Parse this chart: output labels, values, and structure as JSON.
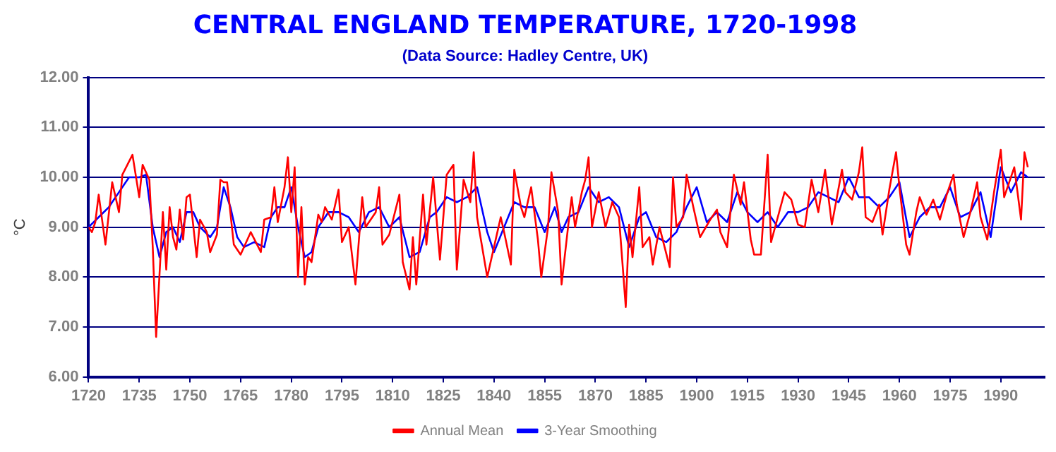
{
  "chart_data": {
    "type": "line",
    "title": "CENTRAL ENGLAND TEMPERATURE, 1720-1998",
    "subtitle": "(Data Source: Hadley Centre, UK)",
    "ylabel": "°C",
    "xlim": [
      1720,
      2003
    ],
    "xticks": [
      1720,
      1735,
      1750,
      1765,
      1780,
      1795,
      1810,
      1825,
      1840,
      1855,
      1870,
      1885,
      1900,
      1915,
      1930,
      1945,
      1960,
      1975,
      1990
    ],
    "ylim": [
      6,
      12
    ],
    "yticks": [
      {
        "value": 6,
        "label": "6.00"
      },
      {
        "value": 7,
        "label": "7.00"
      },
      {
        "value": 8,
        "label": "8.00"
      },
      {
        "value": 9,
        "label": "9.00"
      },
      {
        "value": 10,
        "label": "10.00"
      },
      {
        "value": 11,
        "label": "11.00"
      },
      {
        "value": 12,
        "label": "12.00"
      }
    ],
    "grid": "y",
    "legend": "bottom",
    "marker": "none",
    "line_style": "solid",
    "series": [
      {
        "name": "Annual Mean",
        "color": "#ff0000",
        "x": [
          1720,
          1721,
          1722,
          1723,
          1725,
          1727,
          1729,
          1730,
          1733,
          1735,
          1736,
          1738,
          1739,
          1740,
          1742,
          1743,
          1744,
          1745,
          1746,
          1747,
          1748,
          1749,
          1750,
          1752,
          1753,
          1755,
          1756,
          1758,
          1759,
          1760,
          1761,
          1763,
          1765,
          1768,
          1771,
          1772,
          1774,
          1775,
          1776,
          1778,
          1779,
          1780,
          1781,
          1782,
          1783,
          1784,
          1785,
          1786,
          1788,
          1789,
          1790,
          1792,
          1794,
          1795,
          1797,
          1799,
          1801,
          1802,
          1805,
          1806,
          1807,
          1809,
          1812,
          1813,
          1815,
          1816,
          1817,
          1819,
          1820,
          1822,
          1824,
          1826,
          1828,
          1829,
          1831,
          1833,
          1834,
          1835,
          1837,
          1838,
          1840,
          1842,
          1843,
          1845,
          1846,
          1848,
          1849,
          1851,
          1853,
          1854,
          1856,
          1857,
          1859,
          1860,
          1862,
          1863,
          1864,
          1866,
          1867,
          1868,
          1869,
          1871,
          1873,
          1875,
          1877,
          1879,
          1880,
          1881,
          1883,
          1884,
          1886,
          1887,
          1889,
          1892,
          1893,
          1894,
          1896,
          1897,
          1899,
          1901,
          1904,
          1906,
          1907,
          1909,
          1911,
          1913,
          1914,
          1916,
          1917,
          1919,
          1921,
          1922,
          1924,
          1926,
          1928,
          1930,
          1932,
          1934,
          1936,
          1938,
          1940,
          1943,
          1944,
          1946,
          1948,
          1949,
          1950,
          1952,
          1954,
          1955,
          1957,
          1959,
          1960,
          1962,
          1963,
          1965,
          1966,
          1968,
          1970,
          1972,
          1974,
          1976,
          1977,
          1979,
          1981,
          1983,
          1984,
          1986,
          1988,
          1990,
          1991,
          1994,
          1996,
          1997,
          1998
        ],
        "values": [
          9.0,
          8.9,
          9.1,
          9.65,
          8.65,
          9.9,
          9.3,
          10.05,
          10.45,
          9.6,
          10.25,
          9.95,
          8.6,
          6.8,
          9.3,
          8.15,
          9.4,
          8.8,
          8.55,
          9.35,
          8.75,
          9.6,
          9.65,
          8.4,
          9.15,
          8.9,
          8.5,
          8.85,
          9.95,
          9.9,
          9.9,
          8.65,
          8.45,
          8.9,
          8.5,
          9.15,
          9.2,
          9.8,
          9.1,
          9.8,
          10.4,
          9.3,
          10.2,
          8.0,
          9.4,
          7.85,
          8.4,
          8.3,
          9.25,
          9.1,
          9.4,
          9.15,
          9.75,
          8.7,
          9.0,
          7.85,
          9.6,
          9.0,
          9.3,
          9.8,
          8.65,
          8.85,
          9.65,
          8.3,
          7.75,
          8.8,
          7.85,
          9.65,
          8.65,
          10.0,
          8.35,
          10.05,
          10.25,
          8.15,
          9.95,
          9.5,
          10.5,
          9.2,
          8.4,
          8.0,
          8.6,
          9.2,
          8.9,
          8.25,
          10.15,
          9.4,
          9.2,
          9.8,
          8.75,
          8.0,
          9.0,
          10.1,
          9.3,
          7.85,
          9.05,
          9.6,
          9.0,
          9.7,
          9.95,
          10.4,
          9.0,
          9.7,
          9.0,
          9.5,
          9.2,
          7.4,
          9.05,
          8.4,
          9.8,
          8.6,
          8.8,
          8.25,
          9.0,
          8.2,
          10.0,
          9.0,
          9.2,
          10.05,
          9.4,
          8.8,
          9.15,
          9.35,
          8.9,
          8.6,
          10.05,
          9.45,
          9.9,
          8.75,
          8.45,
          8.45,
          10.45,
          8.7,
          9.2,
          9.7,
          9.55,
          9.05,
          9.0,
          9.95,
          9.3,
          10.15,
          9.05,
          10.15,
          9.7,
          9.55,
          10.1,
          10.6,
          9.2,
          9.1,
          9.45,
          8.85,
          9.75,
          10.5,
          9.8,
          8.65,
          8.45,
          9.3,
          9.6,
          9.25,
          9.55,
          9.15,
          9.65,
          10.05,
          9.45,
          8.8,
          9.3,
          9.9,
          9.2,
          8.75,
          9.7,
          10.55,
          9.6,
          10.2,
          9.15,
          10.5,
          10.2
        ]
      },
      {
        "name": "3-Year Smoothing",
        "color": "#0000ff",
        "x": [
          1720,
          1723,
          1726,
          1729,
          1732,
          1735,
          1737,
          1739,
          1741,
          1743,
          1745,
          1747,
          1749,
          1751,
          1753,
          1756,
          1758,
          1760,
          1762,
          1764,
          1766,
          1769,
          1772,
          1774,
          1776,
          1778,
          1780,
          1782,
          1784,
          1786,
          1788,
          1791,
          1794,
          1797,
          1800,
          1803,
          1806,
          1809,
          1812,
          1815,
          1818,
          1821,
          1823,
          1826,
          1829,
          1832,
          1835,
          1838,
          1840,
          1843,
          1846,
          1849,
          1852,
          1855,
          1858,
          1860,
          1862,
          1865,
          1868,
          1871,
          1874,
          1877,
          1880,
          1883,
          1885,
          1888,
          1891,
          1894,
          1897,
          1900,
          1903,
          1906,
          1909,
          1912,
          1915,
          1918,
          1921,
          1924,
          1927,
          1930,
          1933,
          1936,
          1939,
          1942,
          1945,
          1948,
          1951,
          1954,
          1957,
          1960,
          1963,
          1966,
          1969,
          1972,
          1975,
          1978,
          1981,
          1984,
          1987,
          1990,
          1993,
          1996,
          1998
        ],
        "values": [
          9.0,
          9.2,
          9.4,
          9.7,
          10.0,
          10.0,
          10.05,
          9.0,
          8.4,
          8.9,
          9.0,
          8.7,
          9.3,
          9.3,
          9.0,
          8.8,
          9.0,
          9.8,
          9.4,
          8.8,
          8.6,
          8.7,
          8.6,
          9.2,
          9.4,
          9.4,
          9.8,
          9.0,
          8.4,
          8.5,
          9.0,
          9.3,
          9.3,
          9.2,
          8.9,
          9.3,
          9.4,
          9.0,
          9.2,
          8.4,
          8.5,
          9.2,
          9.3,
          9.6,
          9.5,
          9.6,
          9.8,
          8.9,
          8.5,
          9.0,
          9.5,
          9.4,
          9.4,
          8.9,
          9.4,
          8.9,
          9.2,
          9.3,
          9.8,
          9.5,
          9.6,
          9.4,
          8.6,
          9.2,
          9.3,
          8.8,
          8.7,
          8.9,
          9.4,
          9.8,
          9.1,
          9.3,
          9.1,
          9.7,
          9.3,
          9.1,
          9.3,
          9.0,
          9.3,
          9.3,
          9.4,
          9.7,
          9.6,
          9.5,
          10.0,
          9.6,
          9.6,
          9.4,
          9.6,
          9.9,
          8.8,
          9.2,
          9.4,
          9.4,
          9.8,
          9.2,
          9.3,
          9.7,
          8.8,
          10.2,
          9.7,
          10.1,
          10.0
        ]
      }
    ]
  }
}
